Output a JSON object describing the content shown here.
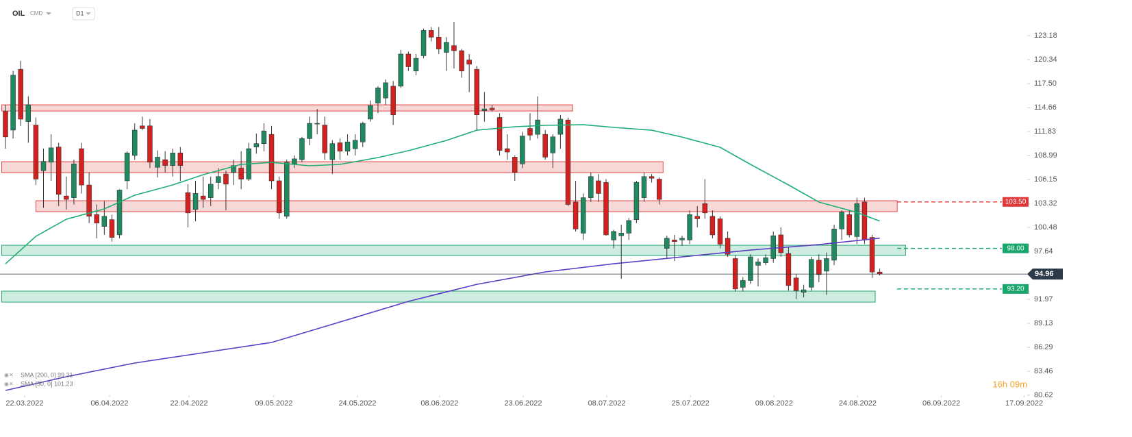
{
  "header": {
    "symbol": "OIL",
    "market": "CMD",
    "interval": "D1",
    "countdown": "16h 09m"
  },
  "chart_data": {
    "type": "candlestick",
    "open": [
      114.2,
      112.0,
      119.2,
      113.0,
      112.6,
      107.2,
      108.2,
      110.0,
      104.2,
      104.0,
      109.8,
      105.5,
      102.0,
      100.6,
      101.4,
      99.6,
      106.0,
      109.0,
      112.5,
      112.5,
      107.6,
      108.5,
      107.8,
      109.3,
      104.6,
      102.6,
      104.2,
      104.0,
      105.8,
      106.8,
      107.0,
      107.5,
      106.2,
      110.0,
      110.4,
      111.5,
      106.0,
      101.8,
      108.0,
      108.5,
      111.0,
      112.8,
      112.6,
      108.5,
      110.5,
      109.5,
      109.8,
      110.6,
      113.3,
      115.2,
      115.8,
      117.2,
      117.2,
      121.0,
      119.0,
      120.8,
      123.8,
      123.0,
      121.2,
      122.0,
      121.4,
      120.3,
      119.2,
      114.3,
      114.6,
      113.5,
      109.8,
      108.8,
      108.0,
      112.2,
      111.5,
      111.5,
      109.3,
      111.5,
      113.2,
      103.5,
      99.8,
      104.0,
      106.0,
      105.8,
      99.0,
      99.5,
      99.8,
      101.4,
      104.0,
      106.5,
      106.2,
      98.0,
      99.0,
      99.0,
      99.0,
      101.8,
      103.3,
      101.8,
      101.5,
      99.2,
      96.8,
      93.4,
      94.2,
      96.0,
      96.3,
      96.8,
      99.6,
      97.4,
      94.5,
      92.8,
      93.4,
      96.6,
      95.3,
      96.6,
      100.3,
      102.0,
      99.4,
      103.5,
      99.3,
      95.2
    ],
    "high": [
      115.0,
      119.0,
      120.2,
      116.0,
      113.5,
      109.8,
      111.5,
      110.5,
      106.5,
      108.5,
      110.5,
      107.0,
      103.2,
      103.6,
      102.0,
      105.0,
      109.5,
      112.8,
      113.6,
      113.3,
      109.6,
      109.5,
      109.8,
      110.0,
      105.6,
      106.0,
      106.5,
      106.5,
      107.5,
      107.2,
      108.5,
      109.5,
      110.5,
      111.6,
      112.8,
      112.5,
      106.5,
      108.5,
      109.0,
      111.2,
      113.6,
      114.5,
      113.6,
      110.8,
      111.0,
      111.5,
      111.5,
      113.0,
      115.5,
      117.2,
      118.0,
      117.8,
      121.5,
      121.3,
      121.0,
      124.0,
      124.2,
      124.2,
      123.0,
      124.8,
      121.6,
      121.0,
      119.6,
      116.5,
      115.0,
      114.0,
      111.5,
      109.0,
      111.8,
      114.0,
      116.0,
      112.0,
      111.5,
      113.8,
      113.5,
      106.0,
      104.5,
      107.0,
      106.8,
      106.2,
      100.2,
      100.8,
      101.6,
      106.0,
      107.0,
      106.8,
      106.4,
      99.5,
      99.6,
      99.5,
      102.5,
      103.0,
      106.2,
      102.5,
      101.8,
      100.0,
      97.2,
      94.6,
      97.3,
      96.8,
      97.3,
      100.0,
      100.5,
      98.2,
      95.0,
      93.7,
      97.0,
      97.3,
      97.5,
      100.8,
      102.5,
      102.5,
      104.0,
      104.0,
      99.6,
      95.6
    ],
    "low": [
      109.8,
      111.0,
      112.5,
      110.5,
      105.5,
      102.8,
      106.0,
      103.0,
      102.6,
      103.2,
      104.5,
      101.0,
      99.2,
      99.6,
      98.8,
      99.2,
      105.0,
      108.5,
      112.0,
      107.5,
      106.4,
      107.0,
      106.5,
      106.0,
      100.5,
      101.2,
      102.8,
      103.0,
      105.0,
      102.5,
      105.5,
      105.0,
      106.0,
      109.2,
      109.5,
      105.0,
      101.5,
      101.5,
      107.5,
      108.2,
      110.2,
      111.5,
      108.5,
      106.8,
      108.5,
      109.0,
      109.0,
      110.0,
      113.0,
      114.0,
      115.0,
      112.6,
      117.0,
      119.0,
      118.5,
      120.5,
      122.5,
      121.0,
      119.0,
      119.3,
      118.2,
      116.5,
      112.0,
      113.0,
      114.2,
      109.0,
      108.5,
      106.0,
      107.5,
      110.8,
      111.0,
      108.5,
      107.5,
      109.8,
      103.0,
      100.0,
      99.0,
      103.5,
      103.5,
      99.5,
      98.0,
      94.4,
      99.0,
      101.0,
      103.5,
      105.8,
      103.2,
      96.8,
      96.5,
      98.3,
      98.5,
      100.5,
      101.5,
      99.2,
      98.0,
      97.0,
      92.9,
      92.9,
      93.8,
      93.5,
      96.0,
      96.3,
      97.0,
      93.0,
      92.0,
      92.2,
      93.0,
      94.0,
      92.5,
      96.0,
      99.0,
      99.3,
      98.5,
      98.5,
      94.5,
      94.8
    ],
    "close": [
      111.2,
      118.5,
      113.3,
      115.0,
      106.2,
      108.3,
      109.9,
      104.4,
      103.8,
      108.0,
      105.5,
      101.8,
      101.0,
      101.8,
      99.3,
      104.9,
      109.3,
      112.0,
      112.2,
      108.2,
      108.8,
      107.8,
      109.3,
      107.8,
      102.2,
      104.5,
      103.8,
      105.6,
      106.5,
      105.6,
      107.8,
      106.2,
      109.8,
      110.4,
      111.9,
      106.0,
      102.2,
      108.2,
      108.6,
      111.0,
      112.8,
      112.8,
      109.3,
      110.4,
      109.5,
      110.6,
      110.8,
      112.8,
      114.9,
      117.0,
      117.6,
      113.8,
      121.0,
      119.5,
      120.5,
      123.8,
      123.0,
      121.6,
      122.4,
      121.4,
      119.0,
      119.8,
      113.8,
      114.5,
      114.4,
      109.6,
      109.4,
      107.0,
      111.3,
      111.4,
      113.2,
      108.8,
      111.2,
      113.3,
      103.2,
      100.3,
      104.0,
      106.5,
      104.5,
      99.6,
      100.0,
      99.8,
      101.3,
      105.8,
      106.5,
      106.3,
      103.8,
      99.2,
      98.8,
      99.2,
      102.0,
      101.5,
      102.2,
      99.6,
      98.5,
      97.3,
      93.2,
      94.2,
      97.0,
      96.4,
      96.9,
      99.5,
      97.5,
      93.6,
      93.0,
      93.1,
      96.7,
      94.9,
      96.8,
      100.3,
      102.3,
      99.6,
      103.3,
      99.0,
      95.2,
      94.96
    ],
    "up_color": "#1f8a60",
    "down_color": "#d3211f",
    "xlim": [
      -0.72,
      134.4
    ],
    "xticks": [
      {
        "value": 2.52,
        "label": "22.03.2022"
      },
      {
        "value": 13.69,
        "label": "06.04.2022"
      },
      {
        "value": 24.14,
        "label": "22.04.2022"
      },
      {
        "value": 35.3,
        "label": "09.05.2022"
      },
      {
        "value": 46.3,
        "label": "24.05.2022"
      },
      {
        "value": 57.1,
        "label": "08.06.2022"
      },
      {
        "value": 68.1,
        "label": "23.06.2022"
      },
      {
        "value": 79.1,
        "label": "08.07.2022"
      },
      {
        "value": 90.1,
        "label": "25.07.2022"
      },
      {
        "value": 101.1,
        "label": "09.08.2022"
      },
      {
        "value": 112.1,
        "label": "24.08.2022"
      },
      {
        "value": 123.1,
        "label": "06.09.2022"
      },
      {
        "value": 134.0,
        "label": "17.09.2022"
      }
    ],
    "ylim": [
      80.62,
      127.4
    ],
    "yticks": [
      123.18,
      120.34,
      {
        "value": 117.5,
        "label": "117.50"
      },
      114.66,
      111.83,
      108.99,
      106.15,
      103.32,
      100.48,
      97.64,
      91.97,
      89.13,
      86.29,
      83.46,
      80.62
    ],
    "lines": [
      {
        "name": "SMA [200, 0] 99.21",
        "color": "#5b3cc4",
        "x": [
          0,
          8,
          17,
          26,
          35,
          44,
          53,
          62,
          71,
          80,
          89,
          98,
          107,
          115
        ],
        "values": [
          81.19,
          82.81,
          84.43,
          85.65,
          86.86,
          89.29,
          91.73,
          93.75,
          95.21,
          96.18,
          96.99,
          97.8,
          98.45,
          99.21
        ]
      },
      {
        "name": "SMA [50, 0] 101.23",
        "color": "#1fae74",
        "x": [
          0,
          4,
          8,
          13,
          17,
          22,
          26,
          31,
          35,
          40,
          44,
          49,
          53,
          58,
          62,
          67,
          71,
          76,
          80,
          85,
          89,
          94,
          98,
          103,
          107,
          112,
          115
        ],
        "values": [
          96.18,
          99.43,
          101.45,
          102.67,
          104.29,
          105.51,
          106.72,
          107.94,
          108.18,
          107.78,
          107.94,
          108.75,
          109.56,
          110.78,
          111.99,
          112.4,
          112.56,
          112.64,
          112.32,
          111.99,
          111.18,
          109.97,
          107.94,
          105.51,
          103.48,
          102.26,
          101.23
        ]
      }
    ],
    "zones": [
      {
        "low": 114.26,
        "high": 114.99,
        "start": -0.5,
        "end": 74.6,
        "color": "#e04848"
      },
      {
        "low": 106.97,
        "high": 108.26,
        "start": -0.5,
        "end": 86.5,
        "color": "#e04848"
      },
      {
        "low": 102.35,
        "high": 103.64,
        "start": 4.0,
        "end": 117.3,
        "color": "#e04848"
      },
      {
        "low": 97.16,
        "high": 98.37,
        "start": -0.5,
        "end": 118.4,
        "color": "#22a772"
      },
      {
        "low": 91.64,
        "high": 92.94,
        "start": -0.5,
        "end": 114.4,
        "color": "#22a772"
      }
    ],
    "levels": [
      {
        "value": 103.5,
        "label": "103.50",
        "color": "#e03a3a"
      },
      {
        "value": 98,
        "label": "98.00",
        "color": "#19a56c"
      },
      {
        "value": 93.2,
        "label": "93.20",
        "color": "#19a56c"
      }
    ],
    "last_price": 94.96
  }
}
